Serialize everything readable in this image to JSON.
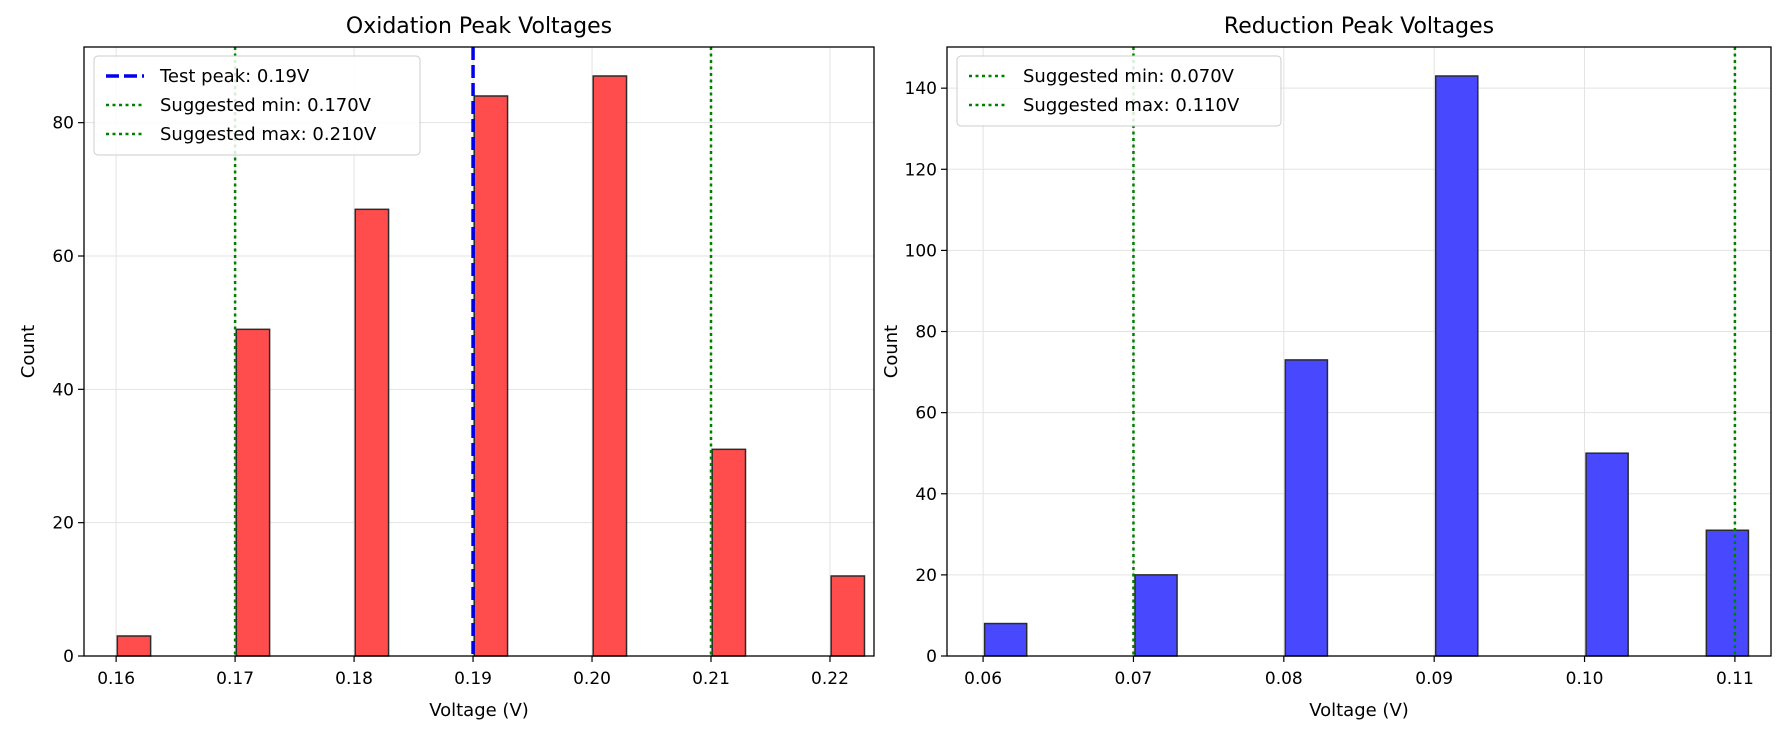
{
  "chart_data": [
    {
      "type": "bar",
      "title": "Oxidation Peak Voltages",
      "xlabel": "Voltage (V)",
      "ylabel": "Count",
      "xlim": [
        0.1573,
        0.2237
      ],
      "ylim": [
        0,
        91.35
      ],
      "bar_width": 0.0028,
      "bar_color": "#ff4d4d",
      "edge_color": "#2b2b2b",
      "xticks": [
        0.16,
        0.17,
        0.18,
        0.19,
        0.2,
        0.21,
        0.22
      ],
      "xtick_labels": [
        "0.16",
        "0.17",
        "0.18",
        "0.19",
        "0.20",
        "0.21",
        "0.22"
      ],
      "yticks": [
        0,
        20,
        40,
        60,
        80
      ],
      "ytick_labels": [
        "0",
        "20",
        "40",
        "60",
        "80"
      ],
      "bars": [
        {
          "x": 0.1615,
          "value": 3
        },
        {
          "x": 0.1715,
          "value": 49
        },
        {
          "x": 0.1815,
          "value": 67
        },
        {
          "x": 0.1915,
          "value": 84
        },
        {
          "x": 0.2015,
          "value": 87
        },
        {
          "x": 0.2115,
          "value": 31
        },
        {
          "x": 0.2215,
          "value": 12
        }
      ],
      "vlines": [
        {
          "x": 0.19,
          "style": "dashed",
          "color": "#0000ee",
          "label": "Test peak: 0.19V"
        },
        {
          "x": 0.17,
          "style": "dotted",
          "color": "#008000",
          "label": "Suggested min: 0.170V"
        },
        {
          "x": 0.21,
          "style": "dotted",
          "color": "#008000",
          "label": "Suggested max: 0.210V"
        }
      ],
      "grid": true,
      "legend_position": "top-left"
    },
    {
      "type": "bar",
      "title": "Reduction Peak Voltages",
      "xlabel": "Voltage (V)",
      "ylabel": "Count",
      "xlim": [
        0.0576,
        0.1124
      ],
      "ylim": [
        0,
        150.15
      ],
      "bar_width": 0.0028,
      "bar_color": "#4848ff",
      "edge_color": "#2b2b2b",
      "xticks": [
        0.06,
        0.07,
        0.08,
        0.09,
        0.1,
        0.11
      ],
      "xtick_labels": [
        "0.06",
        "0.07",
        "0.08",
        "0.09",
        "0.10",
        "0.11"
      ],
      "yticks": [
        0,
        20,
        40,
        60,
        80,
        100,
        120,
        140
      ],
      "ytick_labels": [
        "0",
        "20",
        "40",
        "60",
        "80",
        "100",
        "120",
        "140"
      ],
      "bars": [
        {
          "x": 0.0615,
          "value": 8
        },
        {
          "x": 0.0715,
          "value": 20
        },
        {
          "x": 0.0815,
          "value": 73
        },
        {
          "x": 0.0915,
          "value": 143
        },
        {
          "x": 0.1015,
          "value": 50
        },
        {
          "x": 0.1095,
          "value": 31
        }
      ],
      "vlines": [
        {
          "x": 0.07,
          "style": "dotted",
          "color": "#008000",
          "label": "Suggested min: 0.070V"
        },
        {
          "x": 0.11,
          "style": "dotted",
          "color": "#008000",
          "label": "Suggested max: 0.110V"
        }
      ],
      "grid": true,
      "legend_position": "top-left"
    }
  ]
}
